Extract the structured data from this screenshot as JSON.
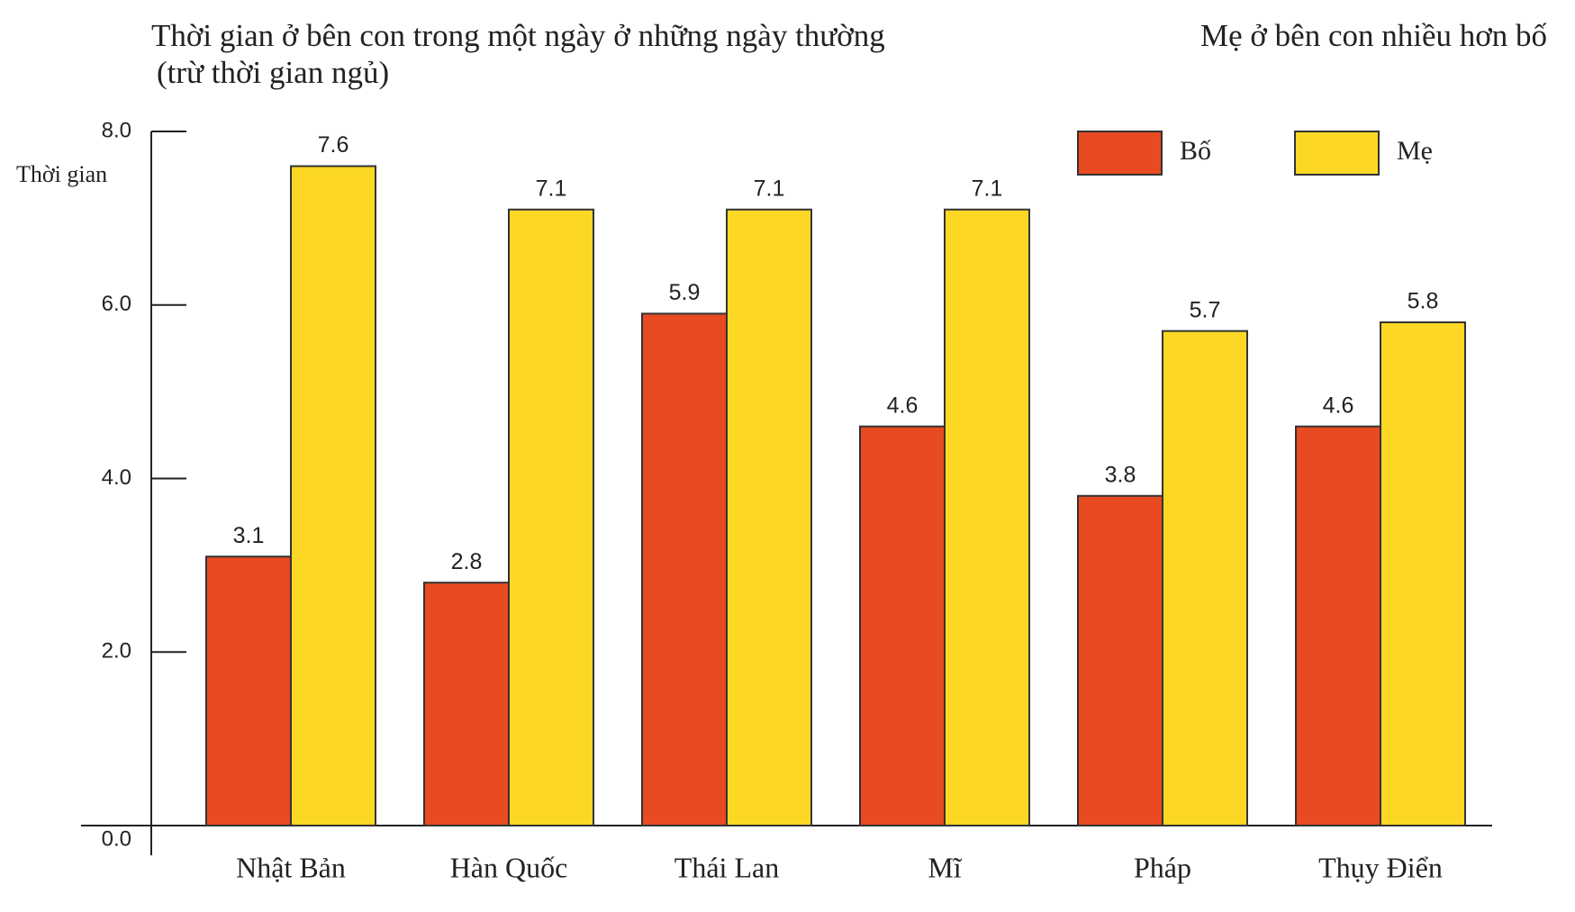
{
  "chart_data": {
    "type": "bar",
    "title": "Thời gian ở bên con trong một ngày ở những ngày thường",
    "subtitle": "(trừ thời gian ngủ)",
    "annotation": "Mẹ ở bên con nhiều hơn bố",
    "y_label": "Thời gian",
    "categories": [
      "Nhật Bản",
      "Hàn Quốc",
      "Thái Lan",
      "Mĩ",
      "Pháp",
      "Thụy Điển"
    ],
    "series": [
      {
        "name": "Bố",
        "color": "#e84a22",
        "values": [
          3.1,
          2.8,
          5.9,
          4.6,
          3.8,
          4.6
        ]
      },
      {
        "name": "Mẹ",
        "color": "#fcd825",
        "values": [
          7.6,
          7.1,
          7.1,
          7.1,
          5.7,
          5.8
        ]
      }
    ],
    "ylim": [
      0,
      8
    ],
    "yticks": [
      {
        "value": 0,
        "label": "0.0"
      },
      {
        "value": 2,
        "label": "2.0"
      },
      {
        "value": 4,
        "label": "4.0"
      },
      {
        "value": 6,
        "label": "6.0"
      },
      {
        "value": 8,
        "label": "8.0"
      }
    ],
    "legend": "top-right"
  }
}
